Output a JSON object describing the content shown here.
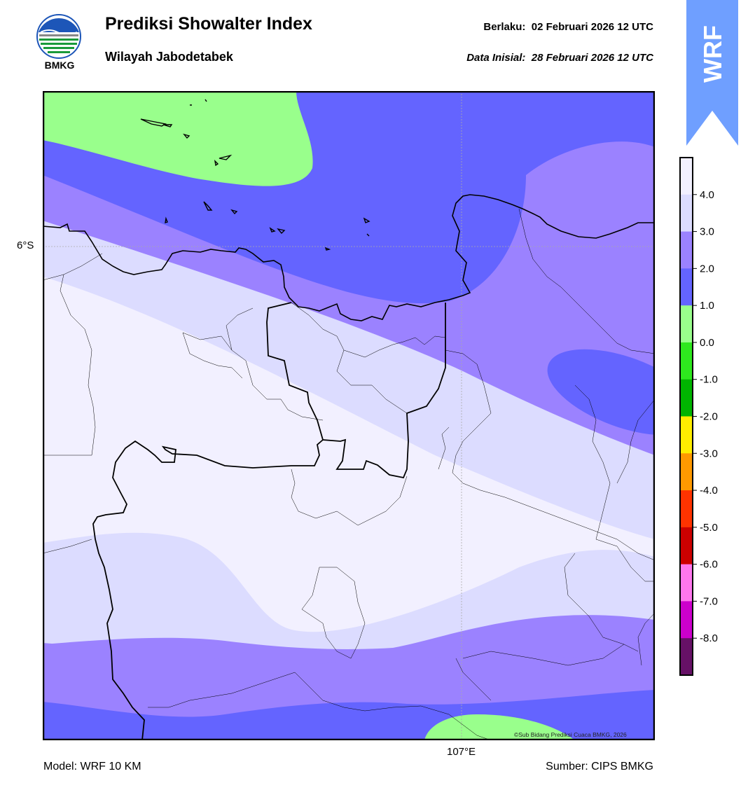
{
  "header": {
    "logo_text": "BMKG",
    "title": "Prediksi Showalter Index",
    "subtitle": "Wilayah Jabodetabek",
    "valid_label": "Berlaku:",
    "valid_value": "02 Februari 2026 12 UTC",
    "init_label": "Data Inisial:",
    "init_value": "28 Februari 2026 12 UTC",
    "badge_text": "WRF"
  },
  "map": {
    "lat_label": "6°S",
    "lon_label": "107°E",
    "copyright": "©Sub Bidang Prediksi Cuaca BMKG, 2026"
  },
  "footer": {
    "model": "Model: WRF 10 KM",
    "source": "Sumber: CIPS BMKG"
  },
  "colorbar": {
    "ticks": [
      "4.0",
      "3.0",
      "2.0",
      "1.0",
      "0.0",
      "-1.0",
      "-2.0",
      "-3.0",
      "-4.0",
      "-5.0",
      "-6.0",
      "-7.0",
      "-8.0"
    ],
    "colors": [
      "#f2f0ff",
      "#dcdcff",
      "#9b82ff",
      "#6464ff",
      "#99ff8c",
      "#2ee81e",
      "#00b400",
      "#ffee00",
      "#ff9900",
      "#ff3300",
      "#cc0000",
      "#ff77ee",
      "#cc00cc",
      "#661166"
    ],
    "badge_color": "#6f9fff"
  }
}
